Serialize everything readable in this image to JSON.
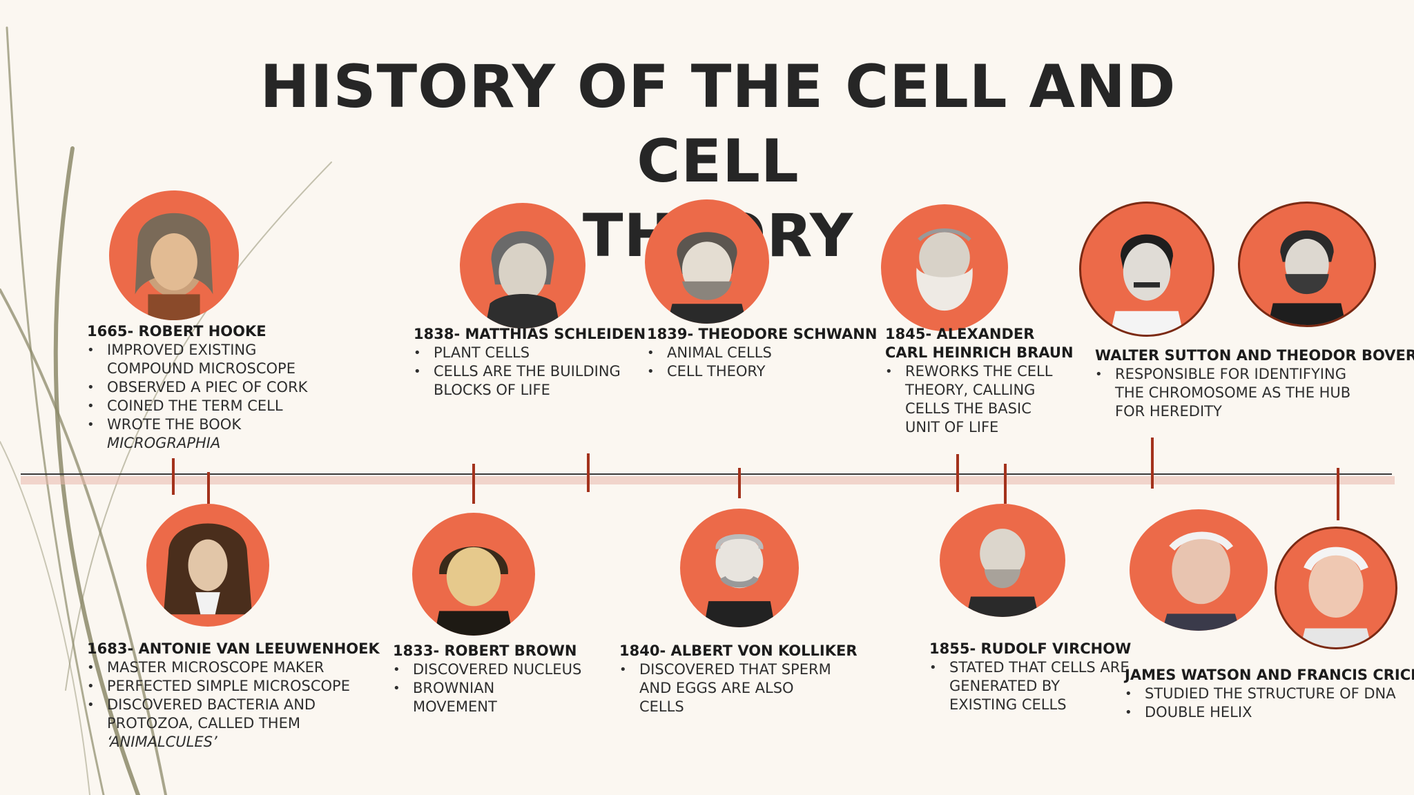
{
  "title": {
    "line1": "HISTORY OF THE CELL AND CELL",
    "line2": "THEORY"
  },
  "colors": {
    "background": "#fbf7f1",
    "portrait_circle": "#ec6a49",
    "tick": "#a3321c",
    "timeline": "#3a3a3a",
    "vines": "#8c8a6a"
  },
  "entries": {
    "hooke": {
      "name": "1665- ROBERT HOOKE",
      "bullets": [
        "IMPROVED EXISTING",
        "COMPOUND MICROSCOPE",
        "OBSERVED A PIEC OF CORK",
        "COINED THE TERM CELL",
        "WROTE THE BOOK",
        "MICROGRAPHIA"
      ]
    },
    "leeuwenhoek": {
      "name": "1683- ANTONIE VAN LEEUWENHOEK",
      "bullets": [
        "MASTER MICROSCOPE MAKER",
        "PERFECTED SIMPLE MICROSCOPE",
        "DISCOVERED BACTERIA AND",
        "PROTOZOA, CALLED THEM",
        "‘ANIMALCULES’"
      ]
    },
    "brown": {
      "name": "1833- ROBERT BROWN",
      "bullets": [
        "DISCOVERED NUCLEUS",
        "BROWNIAN",
        "MOVEMENT"
      ]
    },
    "schleiden": {
      "name": "1838- MATTHIAS SCHLEIDEN",
      "bullets": [
        "PLANT CELLS",
        "CELLS ARE THE BUILDING",
        "BLOCKS OF LIFE"
      ]
    },
    "schwann": {
      "name": "1839- THEODORE SCHWANN",
      "bullets": [
        "ANIMAL CELLS",
        "CELL THEORY"
      ]
    },
    "kolliker": {
      "name": "1840- ALBERT VON KOLLIKER",
      "bullets": [
        "DISCOVERED THAT SPERM",
        "AND EGGS ARE ALSO",
        "CELLS"
      ]
    },
    "braun": {
      "name_line1": "1845- ALEXANDER",
      "name_line2": "CARL HEINRICH BRAUN",
      "bullets": [
        "REWORKS THE CELL",
        "THEORY, CALLING",
        "CELLS THE BASIC",
        "UNIT OF LIFE"
      ]
    },
    "virchow": {
      "name": "1855- RUDOLF VIRCHOW",
      "bullets": [
        "STATED THAT CELLS ARE",
        "GENERATED BY",
        "EXISTING CELLS"
      ]
    },
    "sutton_boveri": {
      "name": "WALTER SUTTON AND THEODOR BOVERI",
      "bullets": [
        "RESPONSIBLE FOR IDENTIFYING",
        "THE CHROMOSOME AS THE HUB",
        "FOR HEREDITY"
      ]
    },
    "watson_crick": {
      "name": "JAMES WATSON AND FRANCIS CRICK",
      "bullets": [
        "STUDIED THE STRUCTURE OF DNA",
        "DOUBLE HELIX"
      ]
    }
  }
}
